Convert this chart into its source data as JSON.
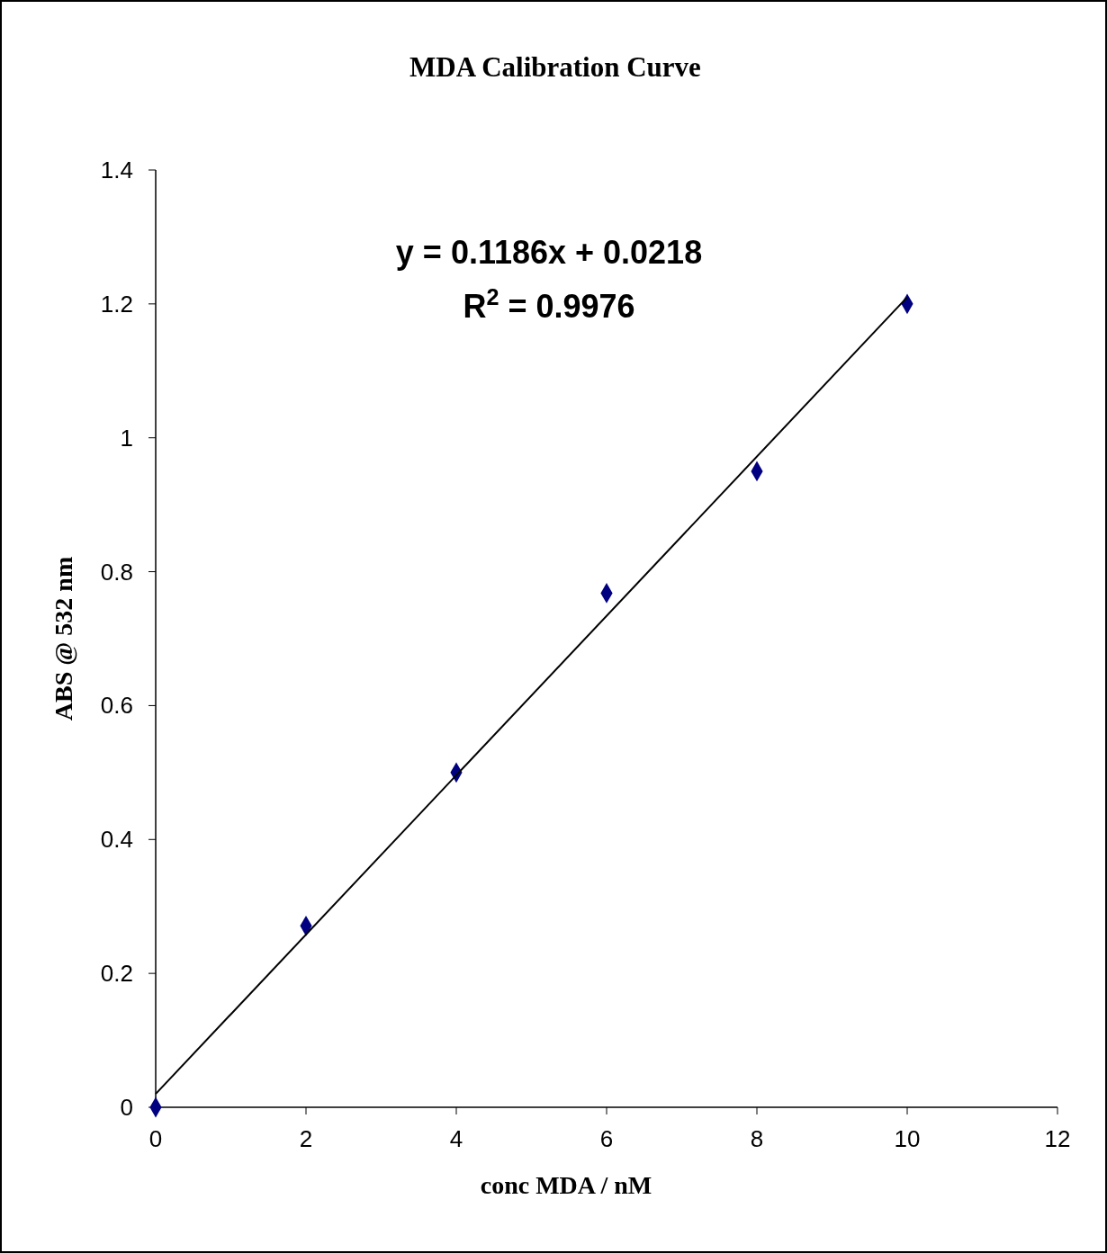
{
  "chart_data": {
    "type": "scatter",
    "title": "MDA Calibration Curve",
    "xlabel": "conc MDA / nM",
    "ylabel": "ABS @ 532 nm",
    "x": [
      0,
      2,
      4,
      6,
      8,
      10
    ],
    "series": [
      {
        "color": "#000080",
        "marker": "diamond",
        "values": [
          0,
          0.271,
          0.5,
          0.768,
          0.95,
          1.2
        ]
      },
      {
        "type": "line",
        "color": "#000000",
        "marker": "none",
        "line_style": "solid",
        "x": [
          0,
          10
        ],
        "values": [
          0.02,
          1.21
        ]
      }
    ],
    "annotations": [
      "y = 0.1186x + 0.0218",
      "R$^{2}$ = 0.9976"
    ],
    "xlim": [
      0,
      12
    ],
    "xticks": [
      0,
      2,
      4,
      6,
      8,
      10,
      12
    ],
    "ylim": [
      0,
      1.4
    ],
    "yticks": [
      0,
      0.2,
      0.4,
      0.6,
      0.8,
      1,
      1.2,
      1.4
    ],
    "grid": false
  }
}
